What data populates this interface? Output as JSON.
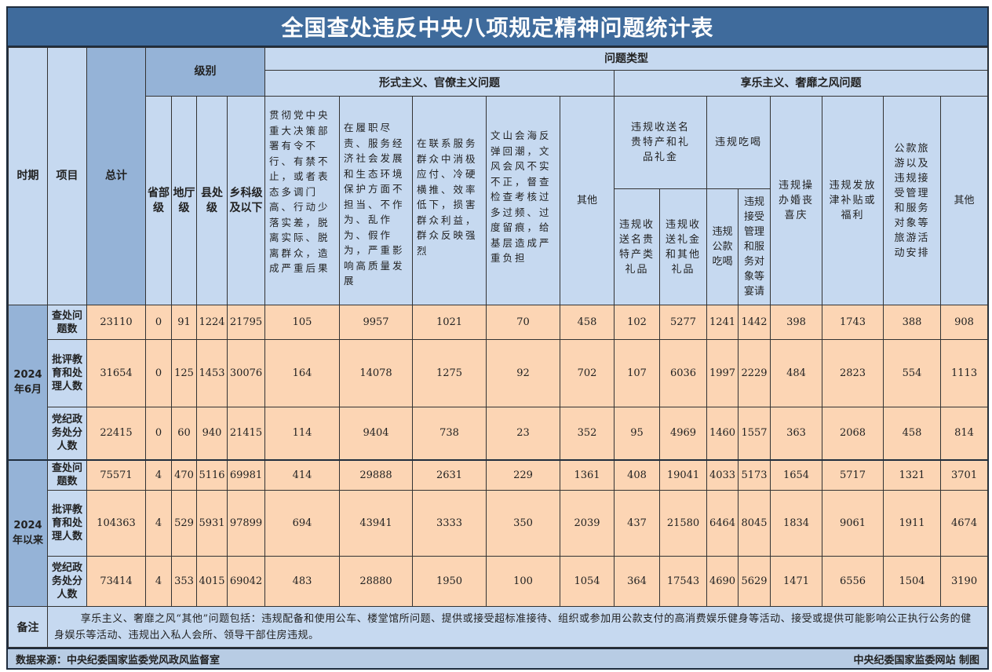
{
  "title": "全国查处违反中央八项规定精神问题统计表",
  "headers": {
    "period": "时期",
    "item": "项目",
    "total": "总计",
    "level": "级别",
    "levels": [
      "省部级",
      "地厅级",
      "县处级",
      "乡科级及以下"
    ],
    "problem_type": "问题类型",
    "formalism": "形式主义、官僚主义问题",
    "formalism_cols": [
      "贯彻党中央重大决策部署有令不行、有禁不止，或者表态多调门高、行动少落实差，脱离实际、脱离群众，造成严重后果",
      "在履职尽责、服务经济社会发展和生态环境保护方面不担当、不作为、乱作为、假作为，严重影响高质量发展",
      "在联系服务群众中消极应付、冷硬横推、效率低下，损害群众利益，群众反映强烈",
      "文山会海反弹回潮，文风会风不实不正，督查检查考核过多过频、过度留痕，给基层造成严重负担",
      "其他"
    ],
    "hedonism": "享乐主义、奢靡之风问题",
    "gifts": "违规收送名贵特产和礼品礼金",
    "gifts_sub": [
      "违规收送名贵特产类礼品",
      "违规收送礼金和其他礼品"
    ],
    "dining": "违规吃喝",
    "dining_sub": [
      "违规公款吃喝",
      "违规接受管理和服务对象等宴请"
    ],
    "hedonism_cols": [
      "违规操办婚丧喜庆",
      "违规发放津补贴或福利",
      "公款旅游以及违规接受管理和服务对象等旅游活动安排",
      "其他"
    ]
  },
  "periods": [
    {
      "label": "2024年6月",
      "rows": [
        {
          "item": "查处问题数",
          "values": [
            23110,
            0,
            91,
            1224,
            21795,
            105,
            9957,
            1021,
            70,
            458,
            102,
            5277,
            1241,
            1442,
            398,
            1743,
            388,
            908
          ]
        },
        {
          "item": "批评教育和处理人数",
          "values": [
            31654,
            0,
            125,
            1453,
            30076,
            164,
            14078,
            1275,
            92,
            702,
            107,
            6036,
            1997,
            2229,
            484,
            2823,
            554,
            1113
          ]
        },
        {
          "item": "党纪政务处分人数",
          "values": [
            22415,
            0,
            60,
            940,
            21415,
            114,
            9404,
            738,
            23,
            352,
            95,
            4969,
            1460,
            1557,
            363,
            2068,
            458,
            814
          ]
        }
      ]
    },
    {
      "label": "2024年以来",
      "rows": [
        {
          "item": "查处问题数",
          "values": [
            75571,
            4,
            470,
            5116,
            69981,
            414,
            29888,
            2631,
            229,
            1361,
            408,
            19041,
            4033,
            5173,
            1654,
            5717,
            1321,
            3701
          ]
        },
        {
          "item": "批评教育和处理人数",
          "values": [
            104363,
            4,
            529,
            5931,
            97899,
            694,
            43941,
            3333,
            350,
            2039,
            437,
            21580,
            6464,
            8045,
            1834,
            9061,
            1911,
            4674
          ]
        },
        {
          "item": "党纪政务处分人数",
          "values": [
            73414,
            4,
            353,
            4015,
            69042,
            483,
            28880,
            1950,
            100,
            1054,
            364,
            17543,
            4690,
            5629,
            1471,
            6556,
            1504,
            3190
          ]
        }
      ]
    }
  ],
  "note": {
    "label": "备注",
    "text": "享乐主义、奢靡之风“其他”问题包括：违规配备和使用公车、楼堂馆所问题、提供或接受超标准接待、组织或参加用公款支付的高消费娱乐健身等活动、接受或提供可能影响公正执行公务的健身娱乐等活动、违规出入私人会所、领导干部住房违规。"
  },
  "footer": {
    "source": "数据来源：中央纪委国家监委党风政风监督室",
    "credit": "中央纪委国家监委网站 制图"
  },
  "colors": {
    "title_bg": "#3f6b9c",
    "header_bg": "#c6d9f0",
    "data_bg": "#fcd5b4",
    "period_bg": "#95b3d7"
  }
}
